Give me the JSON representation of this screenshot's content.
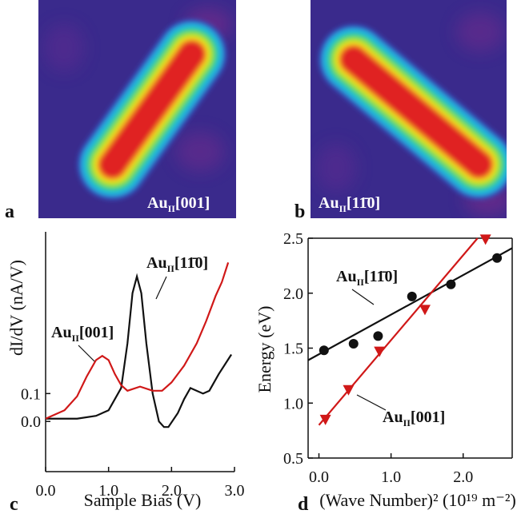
{
  "panels": {
    "a": {
      "letter": "a",
      "label": {
        "main": "Au",
        "sub": "II",
        "rest": "[001]"
      }
    },
    "b": {
      "letter": "b",
      "label": {
        "main": "Au",
        "sub": "II",
        "rest": "[11̄0]"
      }
    }
  },
  "chart_data": [
    {
      "type": "line",
      "letter": "c",
      "xlabel": "Sample Bias (V)",
      "ylabel": "dI/dV (nA/V)",
      "xlim": [
        0,
        3.0
      ],
      "ylim": [
        -0.18,
        0.68
      ],
      "xticks": [
        {
          "value": 0,
          "label": "0.0"
        },
        {
          "value": 1,
          "label": "1.0"
        },
        {
          "value": 2,
          "label": "2.0"
        },
        {
          "value": 3,
          "label": "3.0"
        }
      ],
      "yticks": [
        {
          "value": 0,
          "label": "0.0"
        },
        0.1
      ],
      "frame": false,
      "series": [
        {
          "name": {
            "main": "Au",
            "sub": "II",
            "rest": "[11̄0]"
          },
          "color": "#111111",
          "x": [
            0,
            0.5,
            0.8,
            1.0,
            1.2,
            1.3,
            1.38,
            1.45,
            1.52,
            1.6,
            1.7,
            1.8,
            1.88,
            1.95,
            2.1,
            2.2,
            2.3,
            2.4,
            2.5,
            2.6,
            2.75,
            2.95
          ],
          "values": [
            0.01,
            0.01,
            0.02,
            0.04,
            0.12,
            0.28,
            0.46,
            0.52,
            0.46,
            0.28,
            0.1,
            0.0,
            -0.02,
            -0.02,
            0.03,
            0.08,
            0.12,
            0.11,
            0.1,
            0.11,
            0.17,
            0.24
          ]
        },
        {
          "name": {
            "main": "Au",
            "sub": "II",
            "rest": "[001]"
          },
          "color": "#d01818",
          "x": [
            0,
            0.3,
            0.5,
            0.65,
            0.8,
            0.9,
            1.0,
            1.1,
            1.2,
            1.3,
            1.5,
            1.7,
            1.85,
            2.0,
            2.2,
            2.4,
            2.55,
            2.7,
            2.8,
            2.9
          ],
          "values": [
            0.01,
            0.04,
            0.09,
            0.16,
            0.22,
            0.235,
            0.22,
            0.17,
            0.13,
            0.11,
            0.125,
            0.11,
            0.11,
            0.14,
            0.2,
            0.28,
            0.36,
            0.45,
            0.5,
            0.57
          ]
        }
      ]
    },
    {
      "type": "scatter",
      "letter": "d",
      "xlabel": "(Wave Number)² (10¹⁹ m⁻²)",
      "ylabel": "Energy (eV)",
      "xlim": [
        -0.15,
        2.68
      ],
      "ylim": [
        0.5,
        2.5
      ],
      "xticks": [
        {
          "value": 0,
          "label": "0.0"
        },
        {
          "value": 1,
          "label": "1.0"
        },
        {
          "value": 2,
          "label": "2.0"
        }
      ],
      "yticks": [
        0.5,
        {
          "value": 1,
          "label": "1.0"
        },
        1.5,
        {
          "value": 2,
          "label": "2.0"
        },
        2.5
      ],
      "frame": true,
      "series": [
        {
          "name": {
            "main": "Au",
            "sub": "II",
            "rest": "[11̄0]"
          },
          "color": "#111111",
          "marker": "circle",
          "x": [
            0.07,
            0.48,
            0.82,
            1.29,
            1.83,
            2.47
          ],
          "values": [
            1.48,
            1.54,
            1.61,
            1.97,
            2.08,
            2.32
          ],
          "fit": {
            "x": [
              -0.15,
              2.68
            ],
            "values": [
              1.39,
              2.41
            ]
          }
        },
        {
          "name": {
            "main": "Au",
            "sub": "II",
            "rest": "[001]"
          },
          "color": "#d01818",
          "marker": "triangle",
          "x": [
            0.09,
            0.41,
            0.84,
            1.47,
            2.31
          ],
          "values": [
            0.85,
            1.12,
            1.47,
            1.85,
            2.49
          ],
          "fit": {
            "x": [
              0,
              2.2
            ],
            "values": [
              0.8,
              2.5
            ]
          }
        }
      ]
    }
  ]
}
